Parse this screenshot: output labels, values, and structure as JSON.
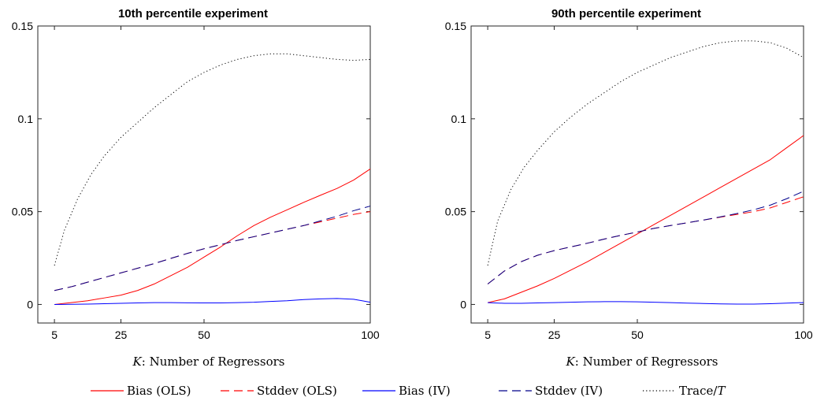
{
  "chart_data": [
    {
      "type": "line",
      "title": "10th percentile experiment",
      "xlabel_var": "K",
      "xlabel_text": ": Number of Regressors",
      "xticks": [
        5,
        25,
        50,
        100
      ],
      "xtick_labels": [
        "5",
        "25",
        "50",
        "100"
      ],
      "yticks": [
        0,
        0.05,
        0.1,
        0.15
      ],
      "ytick_labels": [
        "0",
        "0.05",
        "0.1",
        "0.15"
      ],
      "xlim": [
        0,
        100
      ],
      "ylim": [
        -0.01,
        0.15
      ],
      "grid": false,
      "series": [
        {
          "name": "Bias (OLS)",
          "color": "#ff0000",
          "dash": "solid",
          "x": [
            5,
            10,
            15,
            20,
            25,
            30,
            35,
            40,
            45,
            50,
            55,
            60,
            65,
            70,
            75,
            80,
            85,
            90,
            95,
            100
          ],
          "y": [
            0.0,
            0.001,
            0.002,
            0.0035,
            0.005,
            0.0075,
            0.011,
            0.0155,
            0.02,
            0.0255,
            0.031,
            0.037,
            0.0425,
            0.047,
            0.051,
            0.055,
            0.0588,
            0.0625,
            0.067,
            0.073
          ]
        },
        {
          "name": "Stddev (OLS)",
          "color": "#ff0000",
          "dash": "dashed",
          "x": [
            5,
            10,
            15,
            20,
            25,
            30,
            35,
            40,
            45,
            50,
            55,
            60,
            65,
            70,
            75,
            80,
            85,
            90,
            95,
            100
          ],
          "y": [
            0.0075,
            0.0095,
            0.012,
            0.0145,
            0.017,
            0.0195,
            0.022,
            0.0248,
            0.0275,
            0.03,
            0.0322,
            0.0345,
            0.0365,
            0.0385,
            0.0405,
            0.0425,
            0.0445,
            0.0465,
            0.0485,
            0.05
          ]
        },
        {
          "name": "Bias (IV)",
          "color": "#0000ff",
          "dash": "solid",
          "x": [
            5,
            10,
            15,
            20,
            25,
            30,
            35,
            40,
            45,
            50,
            55,
            60,
            65,
            70,
            75,
            80,
            85,
            90,
            95,
            100
          ],
          "y": [
            0.0,
            0.0001,
            0.0002,
            0.0004,
            0.0006,
            0.0008,
            0.001,
            0.001,
            0.0009,
            0.0008,
            0.0008,
            0.001,
            0.0012,
            0.0016,
            0.002,
            0.0026,
            0.003,
            0.0032,
            0.0028,
            0.0012
          ]
        },
        {
          "name": "Stddev (IV)",
          "color": "#00008b",
          "dash": "dashed",
          "x": [
            5,
            10,
            15,
            20,
            25,
            30,
            35,
            40,
            45,
            50,
            55,
            60,
            65,
            70,
            75,
            80,
            85,
            90,
            95,
            100
          ],
          "y": [
            0.0075,
            0.0095,
            0.012,
            0.0145,
            0.017,
            0.0195,
            0.022,
            0.0248,
            0.0275,
            0.03,
            0.0322,
            0.0345,
            0.0365,
            0.0385,
            0.0405,
            0.0425,
            0.045,
            0.0475,
            0.0505,
            0.053
          ]
        },
        {
          "name": "Trace/T",
          "color": "#000000",
          "dash": "dotted",
          "x": [
            5,
            8,
            12,
            16,
            20,
            25,
            30,
            35,
            40,
            45,
            50,
            55,
            60,
            65,
            70,
            75,
            80,
            85,
            90,
            95,
            100
          ],
          "y": [
            0.021,
            0.04,
            0.057,
            0.07,
            0.08,
            0.09,
            0.098,
            0.106,
            0.113,
            0.12,
            0.125,
            0.129,
            0.132,
            0.134,
            0.135,
            0.135,
            0.134,
            0.133,
            0.132,
            0.1315,
            0.132
          ]
        }
      ]
    },
    {
      "type": "line",
      "title": "90th percentile experiment",
      "xlabel_var": "K",
      "xlabel_text": ": Number of Regressors",
      "xticks": [
        5,
        25,
        50,
        100
      ],
      "xtick_labels": [
        "5",
        "25",
        "50",
        "100"
      ],
      "yticks": [
        0,
        0.05,
        0.1,
        0.15
      ],
      "ytick_labels": [
        "0",
        "0.05",
        "0.1",
        "0.15"
      ],
      "xlim": [
        0,
        100
      ],
      "ylim": [
        -0.01,
        0.15
      ],
      "grid": false,
      "series": [
        {
          "name": "Bias (OLS)",
          "color": "#ff0000",
          "dash": "solid",
          "x": [
            5,
            10,
            15,
            20,
            25,
            30,
            35,
            40,
            45,
            50,
            55,
            60,
            65,
            70,
            75,
            80,
            85,
            90,
            95,
            100
          ],
          "y": [
            0.001,
            0.003,
            0.0065,
            0.01,
            0.014,
            0.0185,
            0.023,
            0.028,
            0.033,
            0.038,
            0.043,
            0.048,
            0.053,
            0.058,
            0.063,
            0.068,
            0.073,
            0.078,
            0.0845,
            0.091
          ]
        },
        {
          "name": "Stddev (OLS)",
          "color": "#ff0000",
          "dash": "dashed",
          "x": [
            5,
            10,
            15,
            20,
            25,
            30,
            35,
            40,
            45,
            50,
            55,
            60,
            65,
            70,
            75,
            80,
            85,
            90,
            95,
            100
          ],
          "y": [
            0.011,
            0.018,
            0.023,
            0.0265,
            0.029,
            0.031,
            0.033,
            0.0352,
            0.0372,
            0.039,
            0.041,
            0.0425,
            0.044,
            0.0455,
            0.047,
            0.0485,
            0.05,
            0.052,
            0.055,
            0.058
          ]
        },
        {
          "name": "Bias (IV)",
          "color": "#0000ff",
          "dash": "solid",
          "x": [
            5,
            10,
            15,
            20,
            25,
            30,
            35,
            40,
            45,
            50,
            55,
            60,
            65,
            70,
            75,
            80,
            85,
            90,
            95,
            100
          ],
          "y": [
            0.001,
            0.0006,
            0.0006,
            0.0008,
            0.001,
            0.0012,
            0.0014,
            0.0015,
            0.0015,
            0.0014,
            0.0012,
            0.001,
            0.0007,
            0.0005,
            0.0003,
            0.0002,
            0.0002,
            0.0004,
            0.0007,
            0.001
          ]
        },
        {
          "name": "Stddev (IV)",
          "color": "#00008b",
          "dash": "dashed",
          "x": [
            5,
            10,
            15,
            20,
            25,
            30,
            35,
            40,
            45,
            50,
            55,
            60,
            65,
            70,
            75,
            80,
            85,
            90,
            95,
            100
          ],
          "y": [
            0.011,
            0.018,
            0.023,
            0.0265,
            0.029,
            0.031,
            0.033,
            0.0352,
            0.0372,
            0.039,
            0.041,
            0.0425,
            0.044,
            0.0455,
            0.0472,
            0.049,
            0.051,
            0.0535,
            0.057,
            0.061
          ]
        },
        {
          "name": "Trace/T",
          "color": "#000000",
          "dash": "dotted",
          "x": [
            5,
            8,
            12,
            16,
            20,
            25,
            30,
            35,
            40,
            45,
            50,
            55,
            60,
            65,
            70,
            75,
            80,
            85,
            90,
            95,
            100
          ],
          "y": [
            0.021,
            0.045,
            0.062,
            0.074,
            0.083,
            0.093,
            0.101,
            0.108,
            0.114,
            0.12,
            0.125,
            0.129,
            0.133,
            0.136,
            0.139,
            0.141,
            0.142,
            0.142,
            0.141,
            0.138,
            0.133
          ]
        }
      ]
    }
  ],
  "legend": [
    {
      "label": "Bias (OLS)",
      "color": "#ff0000",
      "dash": "solid"
    },
    {
      "label": "Stddev (OLS)",
      "color": "#ff0000",
      "dash": "dashed"
    },
    {
      "label": "Bias (IV)",
      "color": "#0000ff",
      "dash": "solid"
    },
    {
      "label": "Stddev (IV)",
      "color": "#00008b",
      "dash": "dashed"
    },
    {
      "label_pre": "Trace/",
      "label_var": "T",
      "label": "Trace/T",
      "color": "#000000",
      "dash": "dotted"
    }
  ]
}
